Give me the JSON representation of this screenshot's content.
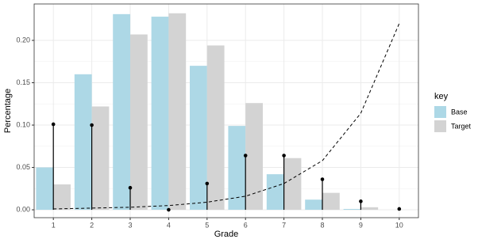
{
  "chart_data": {
    "type": "bar",
    "x_label": "Grade",
    "y_label": "Percentage",
    "legend_title": "key",
    "legend": "right",
    "x": [
      1,
      2,
      3,
      4,
      5,
      6,
      7,
      8,
      9,
      10
    ],
    "series": [
      {
        "name": "Base",
        "color": "#add8e6",
        "values": [
          0.05,
          0.16,
          0.231,
          0.228,
          0.17,
          0.099,
          0.042,
          0.012,
          0.001,
          0
        ]
      },
      {
        "name": "Target",
        "color": "#d3d3d3",
        "values": [
          0.03,
          0.122,
          0.207,
          0.232,
          0.194,
          0.126,
          0.061,
          0.02,
          0.003,
          0
        ]
      }
    ],
    "points": {
      "color": "#000000",
      "values": [
        0.101,
        0.1,
        0.026,
        0.0,
        0.031,
        0.064,
        0.064,
        0.036,
        0.01,
        0.001
      ]
    },
    "curve": {
      "color": "#000000",
      "dashed": true,
      "values": [
        0.001,
        0.002,
        0.003,
        0.005,
        0.009,
        0.016,
        0.031,
        0.058,
        0.114,
        0.22
      ]
    },
    "xlim": [
      0.5,
      10.5
    ],
    "xticks": [
      1,
      2,
      3,
      4,
      5,
      6,
      7,
      8,
      9,
      10
    ],
    "ylim": [
      -0.0093,
      0.243
    ],
    "yticks": [
      {
        "value": 0,
        "label": "0.00"
      },
      {
        "value": 0.05,
        "label": "0.05"
      },
      {
        "value": 0.1,
        "label": "0.10"
      },
      {
        "value": 0.15,
        "label": "0.15"
      },
      {
        "value": 0.2,
        "label": "0.20"
      }
    ],
    "grid": true
  }
}
